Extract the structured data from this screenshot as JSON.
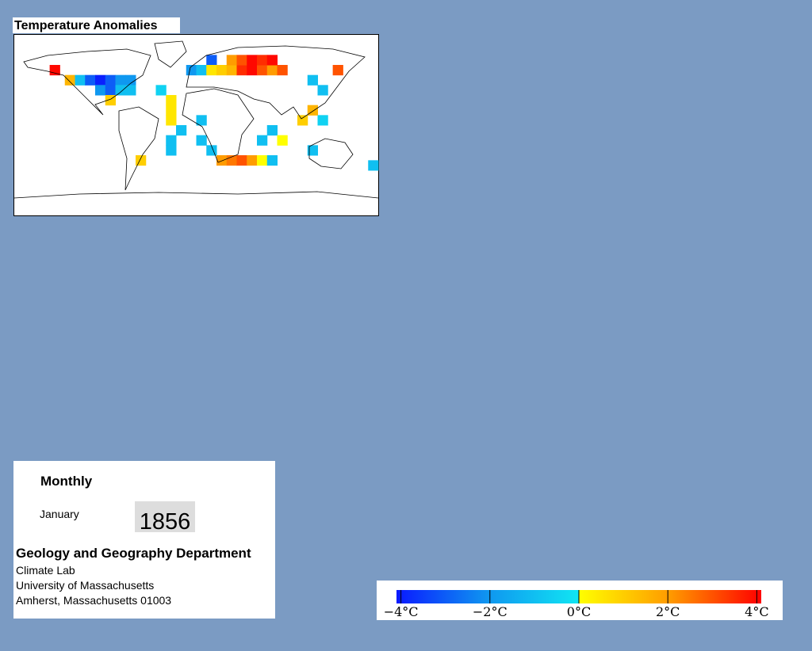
{
  "map": {
    "title": "Temperature Anomalies",
    "cells": [
      {
        "lon": -140,
        "lat": 55,
        "value": 4
      },
      {
        "lon": -125,
        "lat": 45,
        "value": 1.5
      },
      {
        "lon": -115,
        "lat": 45,
        "value": -1
      },
      {
        "lon": -105,
        "lat": 45,
        "value": -3
      },
      {
        "lon": -95,
        "lat": 45,
        "value": -4
      },
      {
        "lon": -85,
        "lat": 45,
        "value": -3
      },
      {
        "lon": -75,
        "lat": 45,
        "value": -2
      },
      {
        "lon": -65,
        "lat": 45,
        "value": -2
      },
      {
        "lon": -95,
        "lat": 35,
        "value": -2
      },
      {
        "lon": -85,
        "lat": 35,
        "value": -3
      },
      {
        "lon": -75,
        "lat": 35,
        "value": -1
      },
      {
        "lon": -65,
        "lat": 35,
        "value": -1
      },
      {
        "lon": -85,
        "lat": 25,
        "value": 1
      },
      {
        "lon": -35,
        "lat": 35,
        "value": -0.5
      },
      {
        "lon": -25,
        "lat": 25,
        "value": 0.5
      },
      {
        "lon": -25,
        "lat": 15,
        "value": 0.5
      },
      {
        "lon": -25,
        "lat": 5,
        "value": 0.5
      },
      {
        "lon": -15,
        "lat": -5,
        "value": -1
      },
      {
        "lon": -25,
        "lat": -15,
        "value": -1
      },
      {
        "lon": -25,
        "lat": -25,
        "value": -1
      },
      {
        "lon": -55,
        "lat": -35,
        "value": 1
      },
      {
        "lon": 5,
        "lat": 5,
        "value": -1
      },
      {
        "lon": 5,
        "lat": -15,
        "value": -1
      },
      {
        "lon": 15,
        "lat": -25,
        "value": -1
      },
      {
        "lon": -5,
        "lat": 55,
        "value": -2
      },
      {
        "lon": 5,
        "lat": 55,
        "value": -1
      },
      {
        "lon": 15,
        "lat": 65,
        "value": -3
      },
      {
        "lon": 15,
        "lat": 55,
        "value": 0.5
      },
      {
        "lon": 25,
        "lat": 55,
        "value": 1
      },
      {
        "lon": 35,
        "lat": 55,
        "value": 1.5
      },
      {
        "lon": 45,
        "lat": 55,
        "value": 3.5
      },
      {
        "lon": 55,
        "lat": 55,
        "value": 4
      },
      {
        "lon": 65,
        "lat": 55,
        "value": 3
      },
      {
        "lon": 75,
        "lat": 55,
        "value": 2
      },
      {
        "lon": 85,
        "lat": 55,
        "value": 3
      },
      {
        "lon": 35,
        "lat": 65,
        "value": 2
      },
      {
        "lon": 45,
        "lat": 65,
        "value": 3
      },
      {
        "lon": 55,
        "lat": 65,
        "value": 4
      },
      {
        "lon": 65,
        "lat": 65,
        "value": 3.5
      },
      {
        "lon": 75,
        "lat": 65,
        "value": 4
      },
      {
        "lon": 140,
        "lat": 55,
        "value": 3
      },
      {
        "lon": 115,
        "lat": 45,
        "value": -1
      },
      {
        "lon": 125,
        "lat": 35,
        "value": -1
      },
      {
        "lon": 105,
        "lat": 5,
        "value": 1
      },
      {
        "lon": 115,
        "lat": 15,
        "value": 1.5
      },
      {
        "lon": 125,
        "lat": 5,
        "value": -0.5
      },
      {
        "lon": 65,
        "lat": -15,
        "value": -1
      },
      {
        "lon": 75,
        "lat": -5,
        "value": -1
      },
      {
        "lon": 85,
        "lat": -15,
        "value": 0
      },
      {
        "lon": 25,
        "lat": -35,
        "value": 2
      },
      {
        "lon": 35,
        "lat": -35,
        "value": 2.5
      },
      {
        "lon": 45,
        "lat": -35,
        "value": 3
      },
      {
        "lon": 55,
        "lat": -35,
        "value": 2
      },
      {
        "lon": 65,
        "lat": -35,
        "value": 0
      },
      {
        "lon": 75,
        "lat": -35,
        "value": -1
      },
      {
        "lon": 115,
        "lat": -25,
        "value": -1
      },
      {
        "lon": 175,
        "lat": -40,
        "value": -1
      }
    ]
  },
  "info": {
    "mode": "Monthly",
    "month": "January",
    "year": "1856",
    "department": "Geology and Geography Department",
    "address": [
      "Climate Lab",
      "University of Massachusetts",
      "Amherst, Massachusetts 01003"
    ]
  },
  "colorbar": {
    "range": [
      -4.1,
      4.1
    ],
    "ticks": [
      {
        "value": -4,
        "label": "−4°C"
      },
      {
        "value": -2,
        "label": "−2°C"
      },
      {
        "value": 0,
        "label": "0°C"
      },
      {
        "value": 2,
        "label": "2°C"
      },
      {
        "value": 4,
        "label": "4°C"
      }
    ]
  }
}
